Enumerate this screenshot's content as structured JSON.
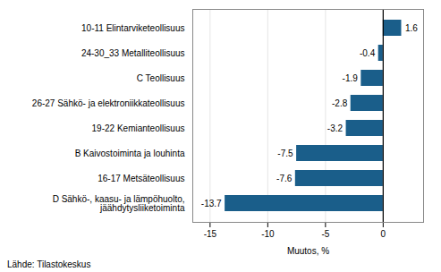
{
  "chart_data": {
    "type": "bar",
    "orientation": "horizontal",
    "categories": [
      "D Sähkö-, kaasu- ja lämpöhuolto,\njäähdytysliiketoiminta",
      "16-17 Metsäteollisuus",
      "B Kaivostoiminta ja louhinta",
      "19-22 Kemianteollisuus",
      "26-27 Sähkö- ja elektroniikkateollisuus",
      "C Teollisuus",
      "24-30_33 Metalliteollisuus",
      "10-11 Elintarviketeollisuus"
    ],
    "values": [
      -13.7,
      -7.6,
      -7.5,
      -3.2,
      -2.8,
      -1.9,
      -0.4,
      1.6
    ],
    "color": "#1a5e8a",
    "xlabel": "Muutos, %",
    "xlim": [
      -16.5,
      3.5
    ],
    "xticks": [
      -15,
      -10,
      -5,
      0
    ],
    "grid": true,
    "data_labels": true,
    "annotations": [
      "Lähde: Tilastokeskus"
    ]
  }
}
